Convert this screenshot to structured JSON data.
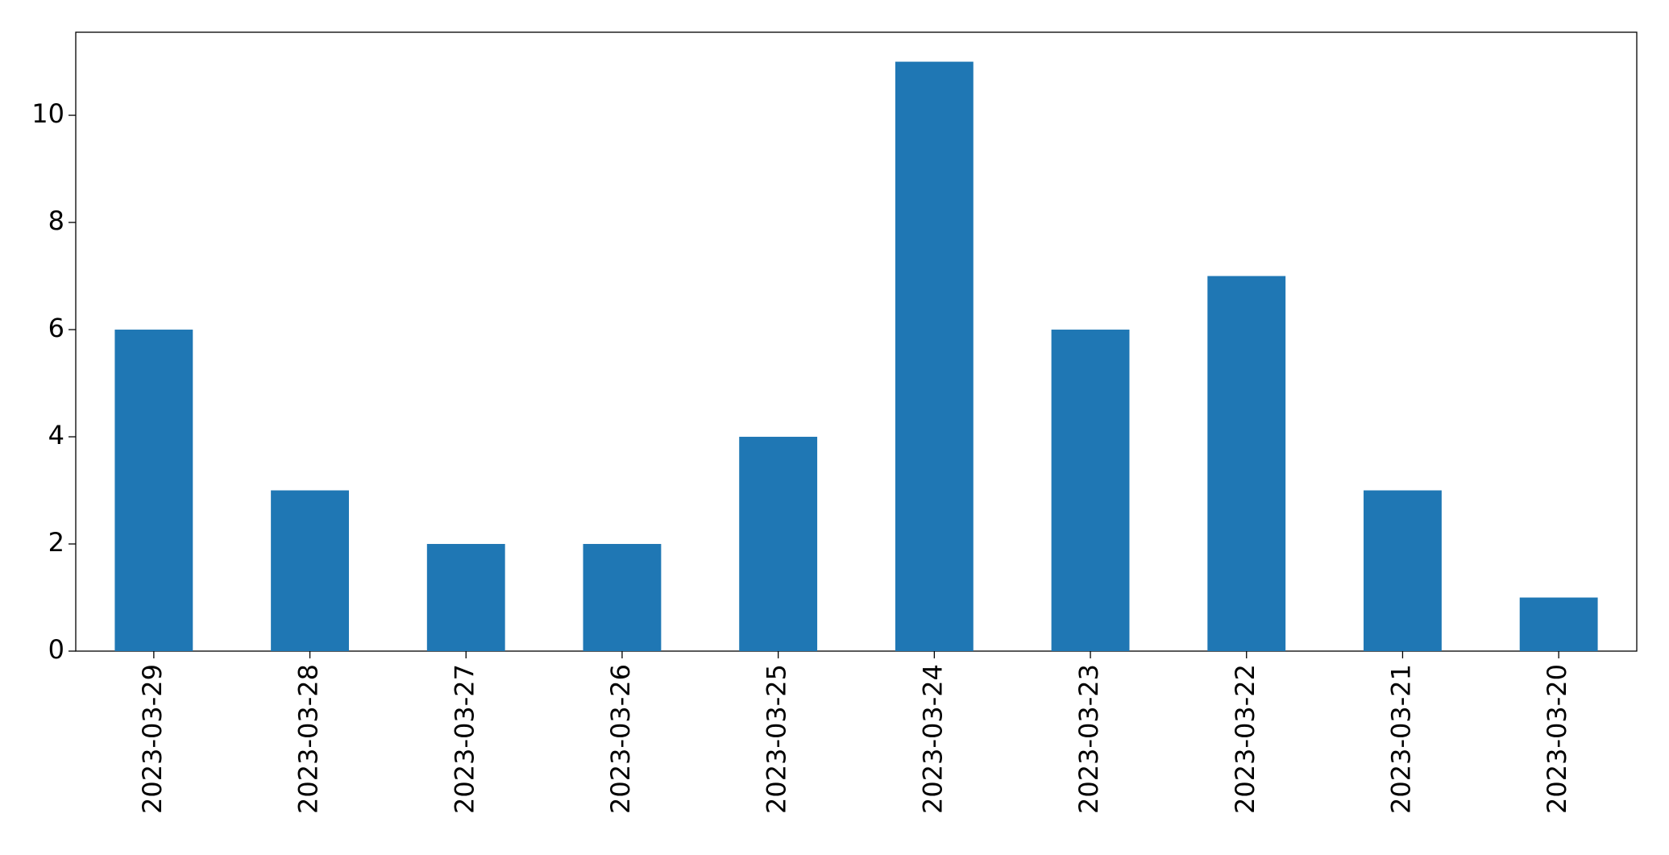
{
  "chart_data": {
    "type": "bar",
    "categories": [
      "2023-03-29",
      "2023-03-28",
      "2023-03-27",
      "2023-03-26",
      "2023-03-25",
      "2023-03-24",
      "2023-03-23",
      "2023-03-22",
      "2023-03-21",
      "2023-03-20"
    ],
    "values": [
      6,
      3,
      2,
      2,
      4,
      11,
      6,
      7,
      3,
      1
    ],
    "color": "#1f77b4",
    "ylim": [
      0,
      11.55
    ],
    "yticks": [
      0,
      2,
      4,
      6,
      8,
      10
    ],
    "grid": false
  }
}
